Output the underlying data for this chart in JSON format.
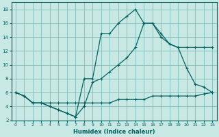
{
  "xlabel": "Humidex (Indice chaleur)",
  "background_color": "#c8e8e4",
  "grid_color": "#7fbcb8",
  "line_color": "#006060",
  "xlim": [
    -0.5,
    23.5
  ],
  "ylim": [
    2,
    19
  ],
  "xticks": [
    0,
    1,
    2,
    3,
    4,
    5,
    6,
    7,
    8,
    9,
    10,
    11,
    12,
    13,
    14,
    15,
    16,
    17,
    18,
    19,
    20,
    21,
    22,
    23
  ],
  "yticks": [
    2,
    4,
    6,
    8,
    10,
    12,
    14,
    16,
    18
  ],
  "line1_x": [
    0,
    1,
    2,
    3,
    4,
    5,
    6,
    7,
    8,
    9,
    10,
    11,
    12,
    13,
    14,
    15,
    16,
    17,
    18,
    19,
    20,
    21,
    22,
    23
  ],
  "line1_y": [
    6,
    5.5,
    4.5,
    4.5,
    4.5,
    4.5,
    4.5,
    4.5,
    4.5,
    4.5,
    4.5,
    4.5,
    5,
    5,
    5,
    5,
    5.5,
    5.5,
    5.5,
    5.5,
    5.5,
    5.5,
    5.8,
    6
  ],
  "line2_x": [
    0,
    1,
    2,
    3,
    4,
    5,
    6,
    7,
    8,
    9,
    10,
    11,
    12,
    13,
    14,
    15,
    16,
    17,
    18,
    19,
    20,
    21,
    22,
    23
  ],
  "line2_y": [
    6,
    5.5,
    4.5,
    4.5,
    4,
    3.5,
    3,
    2.5,
    4,
    7.5,
    8,
    9,
    10,
    11,
    12.5,
    16,
    16,
    14,
    13,
    12.5,
    12.5,
    12.5,
    12.5,
    12.5
  ],
  "line3_x": [
    0,
    1,
    2,
    3,
    4,
    5,
    6,
    7,
    8,
    9,
    10,
    11,
    12,
    13,
    14,
    15,
    16,
    17,
    18,
    19,
    20,
    21,
    22,
    23
  ],
  "line3_y": [
    6,
    5.5,
    4.5,
    4.5,
    4,
    3.5,
    3,
    2.5,
    8,
    8,
    14.5,
    14.5,
    16,
    17,
    18,
    16,
    16,
    14.5,
    13,
    12.5,
    9.5,
    7.2,
    6.8,
    6
  ]
}
